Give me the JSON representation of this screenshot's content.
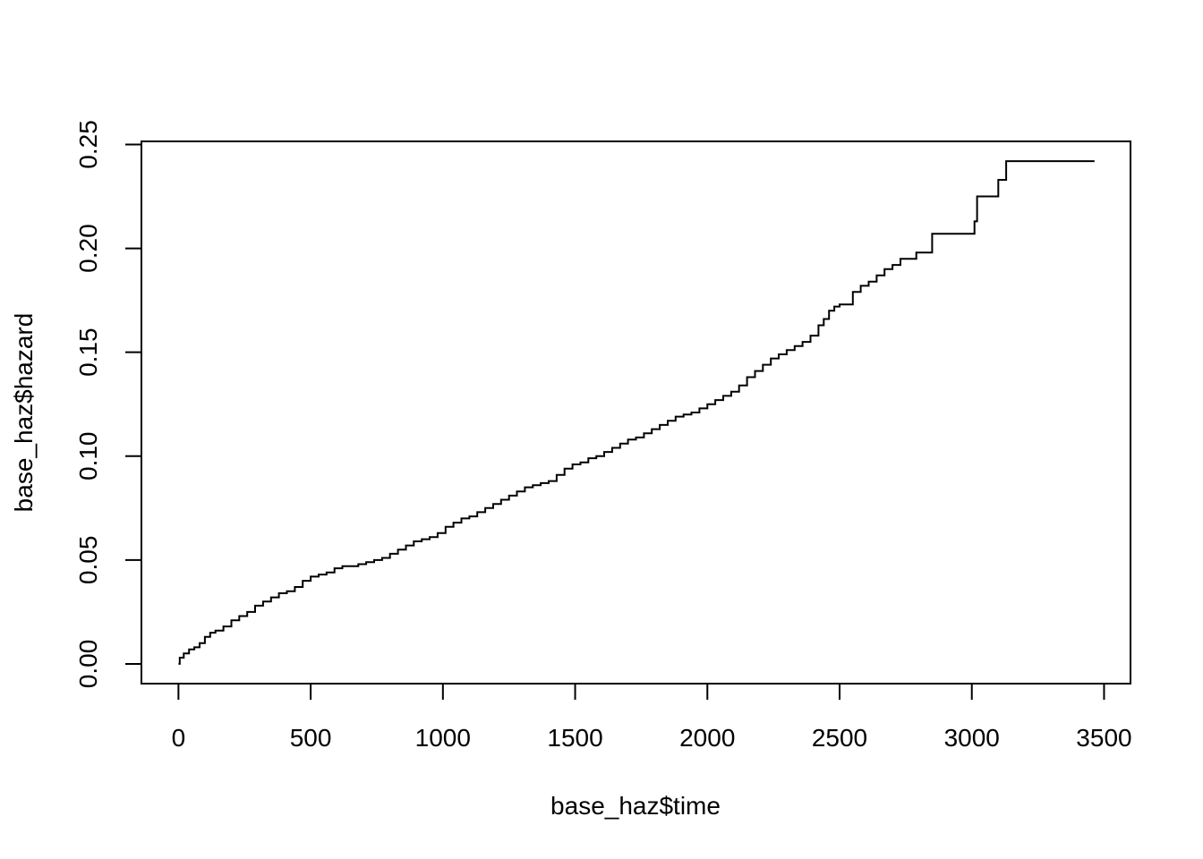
{
  "chart_data": {
    "type": "line",
    "step": true,
    "title": "",
    "xlabel": "base_haz$time",
    "ylabel": "base_haz$hazard",
    "xlim": [
      -140,
      3600
    ],
    "ylim": [
      -0.0095,
      0.2515
    ],
    "xticks": [
      0,
      500,
      1000,
      1500,
      2000,
      2500,
      3000,
      3500
    ],
    "xtick_labels": [
      "0",
      "500",
      "1000",
      "1500",
      "2000",
      "2500",
      "3000",
      "3500"
    ],
    "yticks": [
      0.0,
      0.05,
      0.1,
      0.15,
      0.2,
      0.25
    ],
    "ytick_labels": [
      "0.00",
      "0.05",
      "0.10",
      "0.15",
      "0.20",
      "0.25"
    ],
    "grid": false,
    "legend": "none",
    "series": [
      {
        "color": "#000000",
        "x": [
          0,
          5,
          20,
          40,
          60,
          80,
          100,
          120,
          140,
          170,
          200,
          230,
          260,
          290,
          320,
          350,
          380,
          410,
          440,
          470,
          500,
          530,
          560,
          590,
          620,
          650,
          680,
          710,
          740,
          770,
          800,
          830,
          860,
          890,
          920,
          950,
          980,
          1010,
          1040,
          1070,
          1100,
          1130,
          1160,
          1190,
          1220,
          1250,
          1280,
          1310,
          1340,
          1370,
          1400,
          1430,
          1460,
          1490,
          1520,
          1550,
          1580,
          1610,
          1640,
          1670,
          1700,
          1730,
          1760,
          1790,
          1820,
          1850,
          1880,
          1910,
          1940,
          1970,
          2000,
          2030,
          2060,
          2090,
          2120,
          2150,
          2180,
          2210,
          2240,
          2270,
          2300,
          2330,
          2360,
          2390,
          2420,
          2440,
          2460,
          2480,
          2500,
          2520,
          2550,
          2580,
          2610,
          2640,
          2670,
          2700,
          2730,
          2760,
          2790,
          2850,
          3000,
          3010,
          3020,
          3080,
          3100,
          3130,
          3200,
          3464
        ],
        "y": [
          0.0,
          0.003,
          0.005,
          0.007,
          0.008,
          0.01,
          0.013,
          0.015,
          0.016,
          0.018,
          0.021,
          0.023,
          0.025,
          0.028,
          0.03,
          0.032,
          0.034,
          0.035,
          0.037,
          0.04,
          0.042,
          0.043,
          0.044,
          0.046,
          0.047,
          0.047,
          0.048,
          0.049,
          0.05,
          0.051,
          0.053,
          0.055,
          0.057,
          0.059,
          0.06,
          0.061,
          0.063,
          0.066,
          0.068,
          0.07,
          0.071,
          0.073,
          0.075,
          0.077,
          0.079,
          0.081,
          0.083,
          0.085,
          0.086,
          0.087,
          0.088,
          0.091,
          0.094,
          0.096,
          0.097,
          0.099,
          0.1,
          0.102,
          0.104,
          0.106,
          0.108,
          0.109,
          0.111,
          0.113,
          0.115,
          0.117,
          0.119,
          0.12,
          0.121,
          0.123,
          0.125,
          0.127,
          0.129,
          0.131,
          0.134,
          0.138,
          0.141,
          0.144,
          0.147,
          0.149,
          0.151,
          0.153,
          0.155,
          0.158,
          0.163,
          0.166,
          0.17,
          0.172,
          0.173,
          0.173,
          0.179,
          0.182,
          0.184,
          0.187,
          0.19,
          0.192,
          0.195,
          0.195,
          0.198,
          0.207,
          0.207,
          0.213,
          0.225,
          0.225,
          0.233,
          0.242,
          0.242,
          0.242
        ]
      }
    ]
  }
}
